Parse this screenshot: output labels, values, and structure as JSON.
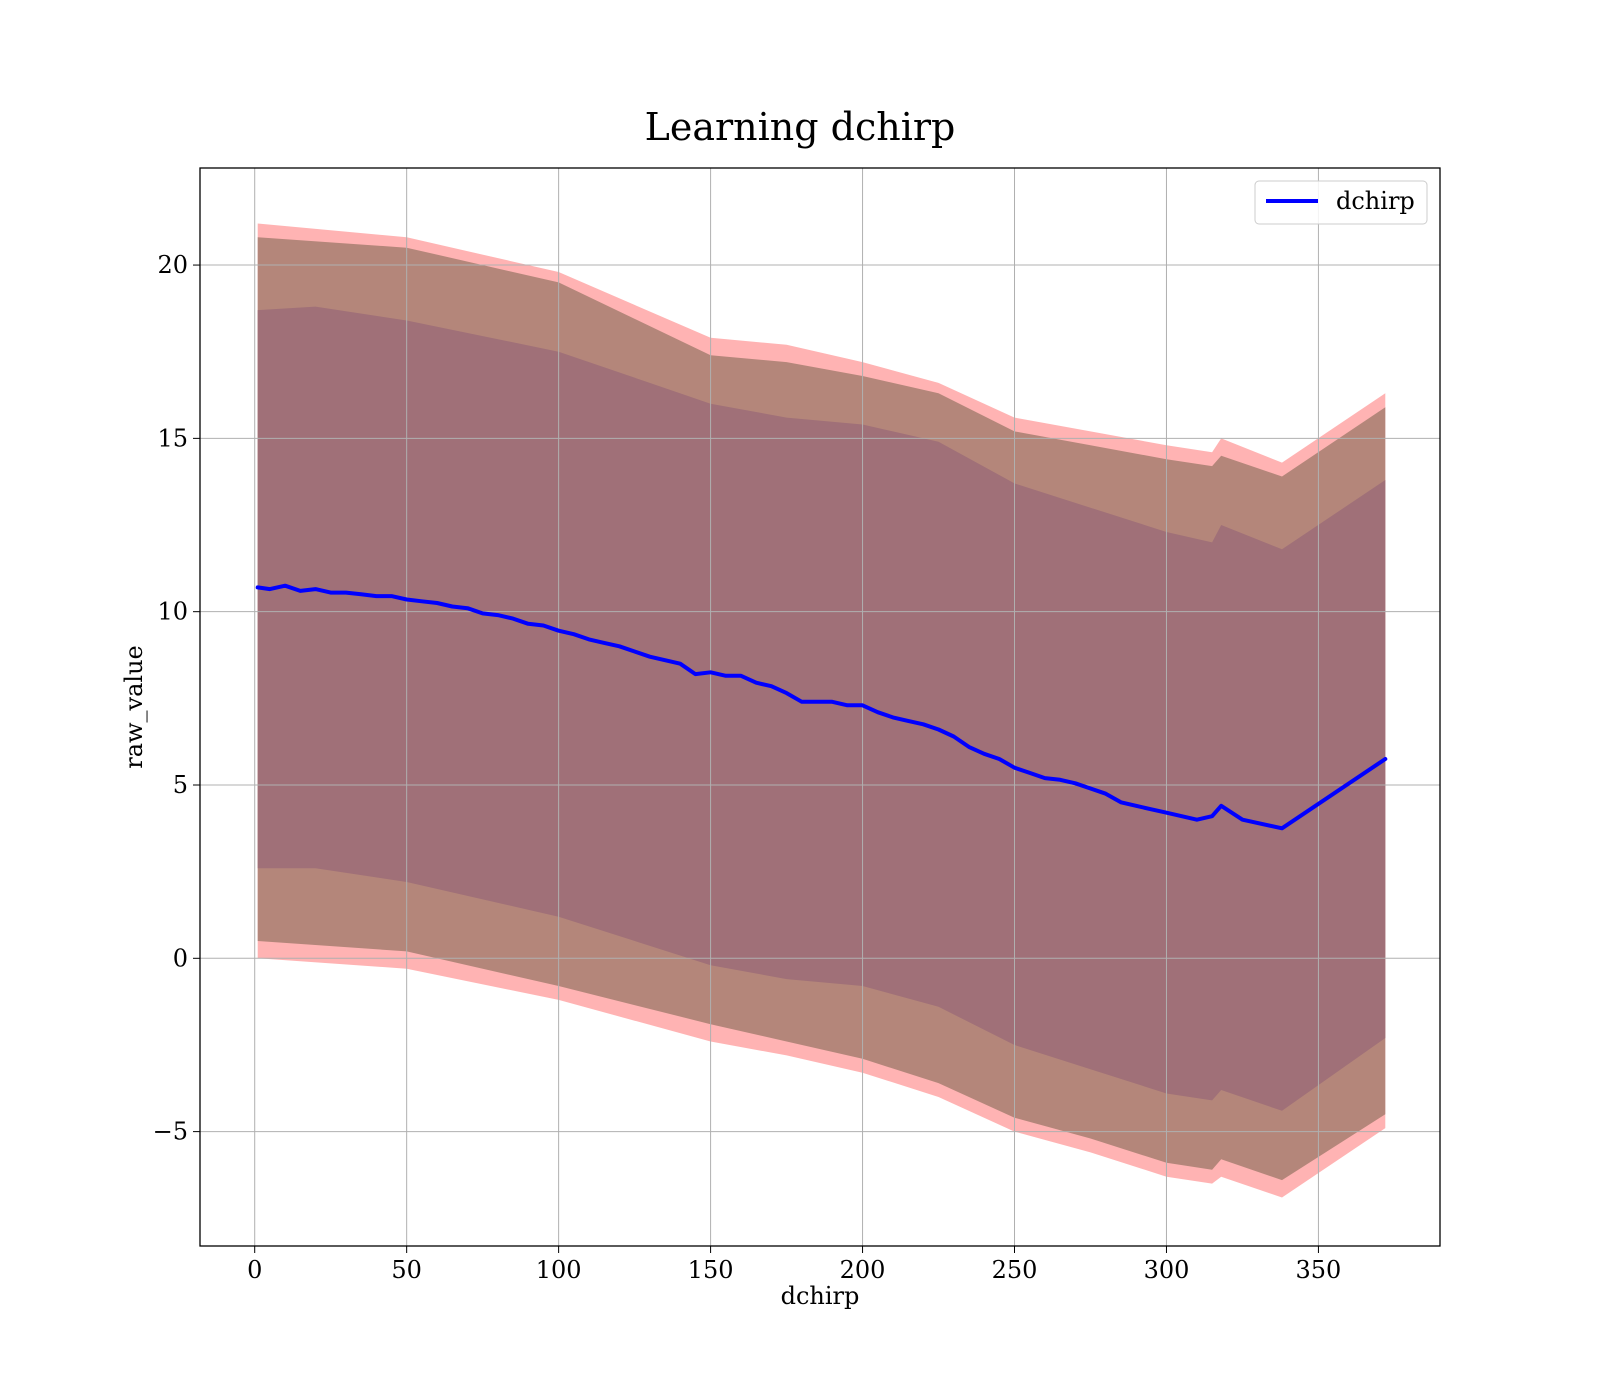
{
  "chart_data": {
    "type": "line",
    "title": "Learning dchirp",
    "xlabel": "dchirp",
    "ylabel": "raw_value",
    "xlim": [
      -18,
      390
    ],
    "ylim": [
      -8.3,
      22.8
    ],
    "xticks": [
      0,
      50,
      100,
      150,
      200,
      250,
      300,
      350
    ],
    "yticks": [
      -5,
      0,
      5,
      10,
      15,
      20
    ],
    "xtick_labels": [
      "0",
      "50",
      "100",
      "150",
      "200",
      "250",
      "300",
      "350"
    ],
    "ytick_labels": [
      "−5",
      "0",
      "5",
      "10",
      "15",
      "20"
    ],
    "grid": true,
    "legend_position": "top-right",
    "series": [
      {
        "name": "dchirp",
        "color": "#0000ff",
        "x": [
          1,
          5,
          10,
          15,
          20,
          25,
          30,
          35,
          40,
          45,
          50,
          55,
          60,
          65,
          70,
          75,
          80,
          85,
          90,
          95,
          100,
          105,
          110,
          115,
          120,
          125,
          130,
          135,
          140,
          145,
          150,
          155,
          160,
          165,
          170,
          175,
          180,
          185,
          190,
          195,
          200,
          205,
          210,
          215,
          220,
          225,
          230,
          235,
          240,
          245,
          250,
          255,
          260,
          265,
          270,
          275,
          280,
          285,
          290,
          295,
          300,
          305,
          310,
          315,
          318,
          325,
          338,
          372
        ],
        "values": [
          10.7,
          10.65,
          10.75,
          10.6,
          10.65,
          10.55,
          10.55,
          10.5,
          10.45,
          10.45,
          10.35,
          10.3,
          10.25,
          10.15,
          10.1,
          9.95,
          9.9,
          9.8,
          9.65,
          9.6,
          9.45,
          9.35,
          9.2,
          9.1,
          9.0,
          8.85,
          8.7,
          8.6,
          8.5,
          8.2,
          8.25,
          8.15,
          8.15,
          7.95,
          7.85,
          7.65,
          7.4,
          7.4,
          7.4,
          7.3,
          7.3,
          7.1,
          6.95,
          6.85,
          6.75,
          6.6,
          6.4,
          6.1,
          5.9,
          5.75,
          5.5,
          5.35,
          5.2,
          5.15,
          5.05,
          4.9,
          4.75,
          4.5,
          4.4,
          4.3,
          4.2,
          4.1,
          4.0,
          4.1,
          4.4,
          4.0,
          3.75,
          5.75
        ]
      }
    ],
    "bands": [
      {
        "fill": "#ff8080",
        "alpha": 0.6,
        "x": [
          1,
          50,
          100,
          150,
          175,
          200,
          225,
          250,
          275,
          300,
          315,
          318,
          338,
          372
        ],
        "upper": [
          21.2,
          20.8,
          19.8,
          17.9,
          17.7,
          17.2,
          16.6,
          15.6,
          15.2,
          14.8,
          14.6,
          15.0,
          14.3,
          16.3
        ],
        "lower": [
          0.0,
          -0.3,
          -1.2,
          -2.4,
          -2.8,
          -3.3,
          -4.0,
          -5.0,
          -5.6,
          -6.3,
          -6.5,
          -6.3,
          -6.9,
          -4.9
        ]
      },
      {
        "fill": "#a17a6b",
        "alpha": 0.8,
        "x": [
          1,
          50,
          100,
          150,
          175,
          200,
          225,
          250,
          275,
          300,
          315,
          318,
          338,
          372
        ],
        "upper": [
          20.8,
          20.5,
          19.5,
          17.4,
          17.2,
          16.8,
          16.3,
          15.2,
          14.8,
          14.4,
          14.2,
          14.5,
          13.9,
          15.9
        ],
        "lower": [
          0.5,
          0.2,
          -0.8,
          -1.9,
          -2.4,
          -2.9,
          -3.6,
          -4.6,
          -5.2,
          -5.9,
          -6.1,
          -5.8,
          -6.4,
          -4.5
        ]
      },
      {
        "fill": "#a07078",
        "alpha": 1.0,
        "x": [
          1,
          20,
          50,
          100,
          150,
          175,
          200,
          225,
          250,
          275,
          300,
          315,
          318,
          338,
          372
        ],
        "upper": [
          18.7,
          18.8,
          18.4,
          17.5,
          16.0,
          15.6,
          15.4,
          14.9,
          13.7,
          13.0,
          12.3,
          12.0,
          12.5,
          11.8,
          13.8
        ],
        "lower": [
          2.6,
          2.6,
          2.2,
          1.2,
          -0.2,
          -0.6,
          -0.8,
          -1.4,
          -2.5,
          -3.2,
          -3.9,
          -4.1,
          -3.8,
          -4.4,
          -2.3
        ]
      }
    ]
  }
}
